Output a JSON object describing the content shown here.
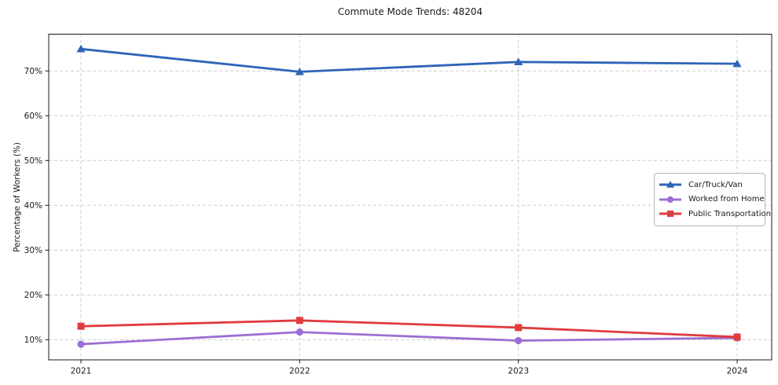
{
  "chart_data": {
    "type": "line",
    "title": "Commute Mode Trends: 48204",
    "xlabel": "",
    "ylabel": "Percentage of Workers (%)",
    "categories": [
      "2021",
      "2022",
      "2023",
      "2024"
    ],
    "series": [
      {
        "name": "Car/Truck/Van",
        "color": "#2d64b8",
        "marker": "triangle",
        "values": [
          74.9,
          69.8,
          72.0,
          71.6
        ]
      },
      {
        "name": "Worked from Home",
        "color": "#9b6fd3",
        "marker": "circle",
        "values": [
          9.0,
          11.7,
          9.8,
          10.4
        ]
      },
      {
        "name": "Public Transportation",
        "color": "#e03b3d",
        "marker": "square",
        "values": [
          13.0,
          14.3,
          12.7,
          10.6
        ]
      }
    ],
    "yticks": [
      10,
      20,
      30,
      40,
      50,
      60,
      70
    ],
    "ytick_labels": [
      "10%",
      "20%",
      "30%",
      "40%",
      "50%",
      "60%",
      "70%"
    ],
    "ylim": [
      5.5,
      78.2
    ],
    "grid": true,
    "grid_style": "dashed",
    "legend_position": "center-right",
    "background_color": "#ffffff",
    "text_color": "#1a1a1a"
  }
}
